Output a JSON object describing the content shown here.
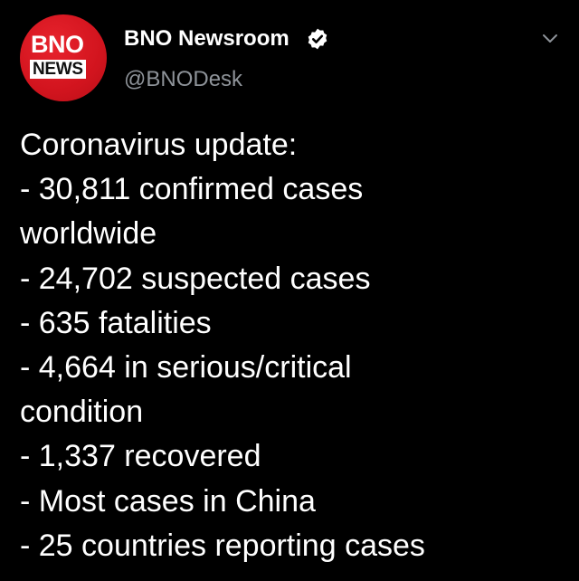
{
  "colors": {
    "background": "#000000",
    "text": "#ffffff",
    "secondary_text": "#8e9399",
    "brand_red": "#d2141e"
  },
  "author": {
    "avatar": {
      "icon": "bno-news-logo",
      "logo_line1": "BNO",
      "logo_line2": "NEWS"
    },
    "display_name": "BNO Newsroom",
    "verified_icon": "verified-badge-icon",
    "handle": "@BNODesk"
  },
  "menu": {
    "icon": "chevron-down-icon"
  },
  "tweet": {
    "lines": [
      "Coronavirus update:",
      "- 30,811 confirmed cases",
      "worldwide",
      "- 24,702 suspected cases",
      "- 635 fatalities",
      "- 4,664 in serious/critical",
      "condition",
      "- 1,337 recovered",
      "- Most cases in China",
      "- 25 countries reporting cases"
    ]
  }
}
